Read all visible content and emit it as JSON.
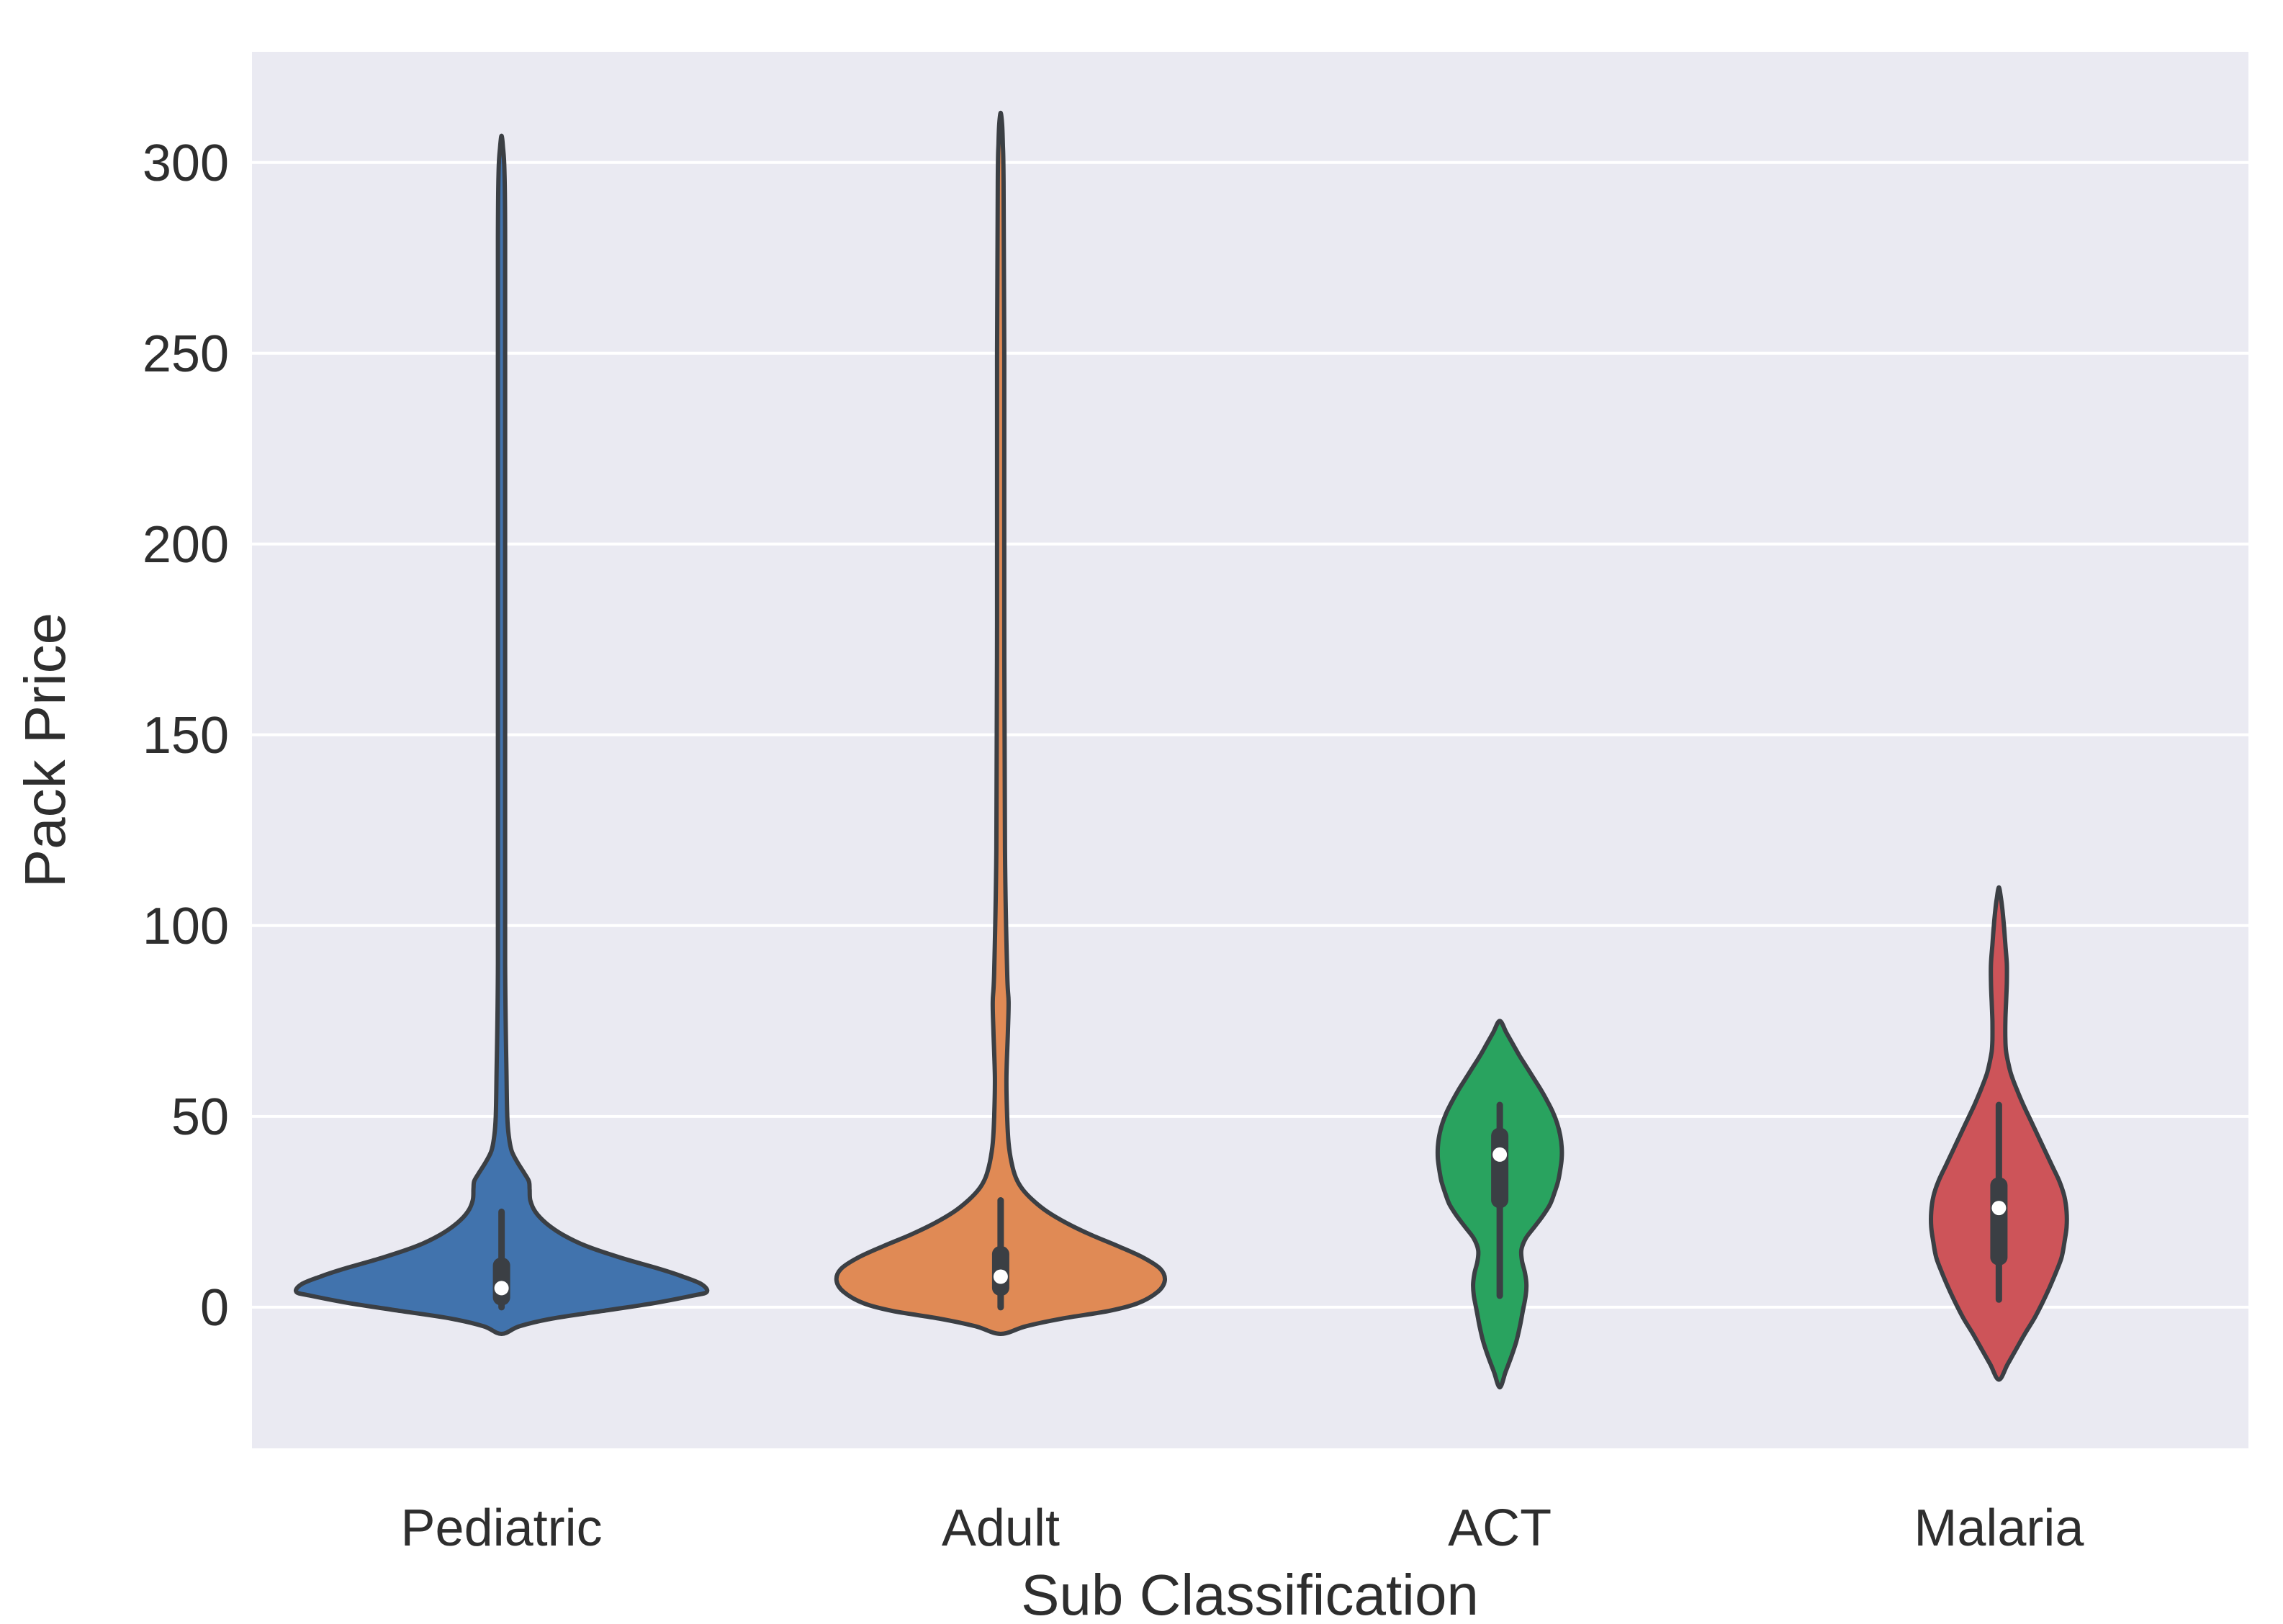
{
  "figure": {
    "background": "#ffffff"
  },
  "chart_data": {
    "type": "violin",
    "title": "",
    "xlabel": "Sub Classification",
    "ylabel": "Pack Price",
    "ylim": [
      -37,
      329
    ],
    "yticks": [
      0,
      50,
      100,
      150,
      200,
      250,
      300
    ],
    "grid": true,
    "legend": "none",
    "plot_background": "#eaeaf2",
    "grid_color": "#ffffff",
    "text_color": "#2e2e2e",
    "outline_color": "#3b3f44",
    "inner_box_color": "#3b3f44",
    "median_dot_color": "#ffffff",
    "categories": [
      "Pediatric",
      "Adult",
      "ACT",
      "Malaria"
    ],
    "series": [
      {
        "name": "Pediatric",
        "color": "#4173ad",
        "stats": {
          "whisker_low": 0,
          "q1": 0.5,
          "median": 5,
          "q3": 13,
          "whisker_high": 25
        },
        "range": [
          -7,
          307
        ],
        "profile": [
          [
            -7,
            0
          ],
          [
            -5,
            25
          ],
          [
            -3,
            70
          ],
          [
            -1,
            140
          ],
          [
            1,
            210
          ],
          [
            3,
            265
          ],
          [
            4,
            285
          ],
          [
            6,
            278
          ],
          [
            8,
            252
          ],
          [
            10,
            220
          ],
          [
            13,
            165
          ],
          [
            16,
            118
          ],
          [
            19,
            85
          ],
          [
            22,
            62
          ],
          [
            25,
            47
          ],
          [
            28,
            40
          ],
          [
            31,
            39
          ],
          [
            33,
            38
          ],
          [
            35,
            32
          ],
          [
            38,
            22
          ],
          [
            41,
            14
          ],
          [
            45,
            10
          ],
          [
            50,
            8
          ],
          [
            60,
            7
          ],
          [
            90,
            5
          ],
          [
            150,
            5
          ],
          [
            220,
            5
          ],
          [
            280,
            5
          ],
          [
            298,
            4
          ],
          [
            304,
            2
          ],
          [
            307,
            0
          ]
        ]
      },
      {
        "name": "Adult",
        "color": "#e08a55",
        "stats": {
          "whisker_low": 0,
          "q1": 3,
          "median": 8,
          "q3": 16,
          "whisker_high": 28
        },
        "range": [
          -7,
          313
        ],
        "profile": [
          [
            -7,
            0
          ],
          [
            -5,
            35
          ],
          [
            -3,
            85
          ],
          [
            -1,
            150
          ],
          [
            1,
            190
          ],
          [
            4,
            218
          ],
          [
            7,
            228
          ],
          [
            10,
            222
          ],
          [
            13,
            198
          ],
          [
            16,
            163
          ],
          [
            19,
            125
          ],
          [
            22,
            92
          ],
          [
            25,
            65
          ],
          [
            28,
            45
          ],
          [
            31,
            30
          ],
          [
            34,
            21
          ],
          [
            38,
            15
          ],
          [
            43,
            11
          ],
          [
            50,
            9
          ],
          [
            60,
            8
          ],
          [
            72,
            10
          ],
          [
            80,
            11
          ],
          [
            88,
            9
          ],
          [
            120,
            6
          ],
          [
            180,
            5
          ],
          [
            250,
            5
          ],
          [
            295,
            4
          ],
          [
            305,
            3
          ],
          [
            310,
            2
          ],
          [
            313,
            0
          ]
        ]
      },
      {
        "name": "ACT",
        "color": "#29a35f",
        "stats": {
          "whisker_low": 3,
          "q1": 26,
          "median": 40,
          "q3": 47,
          "whisker_high": 53
        },
        "range": [
          -21,
          75
        ],
        "profile": [
          [
            -21,
            0
          ],
          [
            -17,
            8
          ],
          [
            -13,
            16
          ],
          [
            -9,
            23
          ],
          [
            -5,
            28
          ],
          [
            -1,
            32
          ],
          [
            3,
            36
          ],
          [
            6,
            37
          ],
          [
            9,
            35
          ],
          [
            12,
            31
          ],
          [
            15,
            30
          ],
          [
            18,
            36
          ],
          [
            21,
            48
          ],
          [
            24,
            60
          ],
          [
            27,
            70
          ],
          [
            30,
            76
          ],
          [
            33,
            81
          ],
          [
            36,
            84
          ],
          [
            39,
            86
          ],
          [
            42,
            86
          ],
          [
            45,
            84
          ],
          [
            48,
            80
          ],
          [
            51,
            74
          ],
          [
            54,
            66
          ],
          [
            57,
            57
          ],
          [
            60,
            47
          ],
          [
            63,
            37
          ],
          [
            66,
            27
          ],
          [
            69,
            18
          ],
          [
            72,
            9
          ],
          [
            75,
            0
          ]
        ]
      },
      {
        "name": "Malaria",
        "color": "#cd5459",
        "stats": {
          "whisker_low": 2,
          "q1": 11,
          "median": 26,
          "q3": 34,
          "whisker_high": 53
        },
        "range": [
          -19,
          110
        ],
        "profile": [
          [
            -19,
            0
          ],
          [
            -15,
            12
          ],
          [
            -11,
            24
          ],
          [
            -7,
            36
          ],
          [
            -3,
            49
          ],
          [
            1,
            60
          ],
          [
            5,
            70
          ],
          [
            9,
            79
          ],
          [
            13,
            87
          ],
          [
            17,
            91
          ],
          [
            21,
            94
          ],
          [
            25,
            94
          ],
          [
            29,
            91
          ],
          [
            33,
            84
          ],
          [
            37,
            74
          ],
          [
            41,
            64
          ],
          [
            45,
            54
          ],
          [
            49,
            44
          ],
          [
            53,
            34
          ],
          [
            57,
            25
          ],
          [
            61,
            17
          ],
          [
            64,
            13
          ],
          [
            67,
            10
          ],
          [
            70,
            9
          ],
          [
            75,
            9
          ],
          [
            80,
            10
          ],
          [
            85,
            11
          ],
          [
            90,
            11
          ],
          [
            95,
            9
          ],
          [
            100,
            7
          ],
          [
            104,
            5
          ],
          [
            107,
            3
          ],
          [
            110,
            0
          ]
        ]
      }
    ]
  }
}
